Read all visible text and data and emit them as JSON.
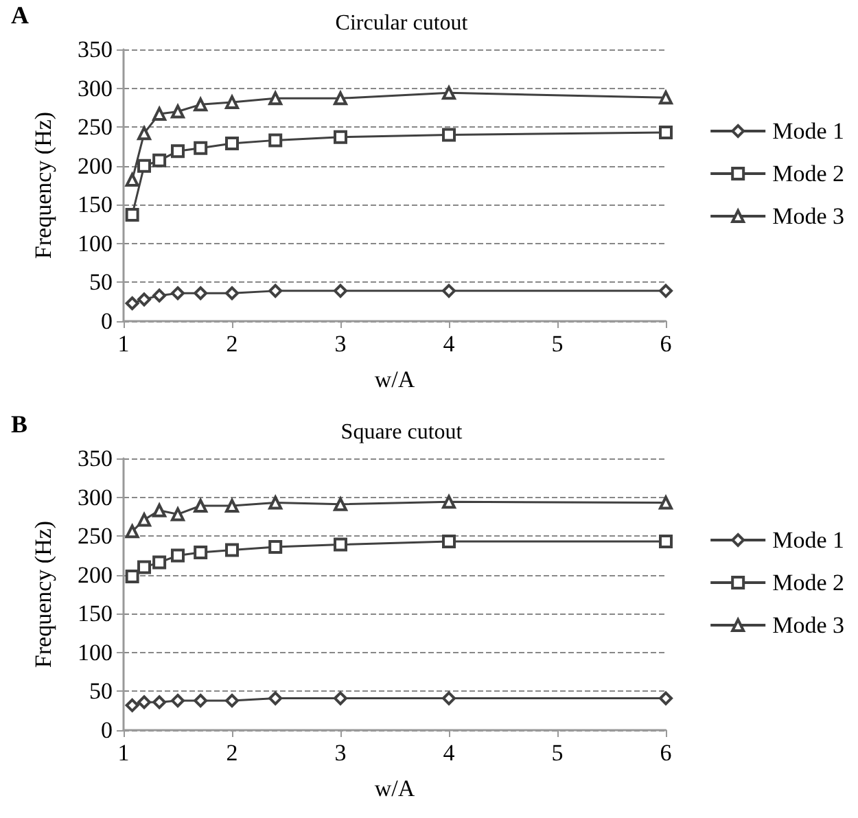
{
  "chart_data": [
    {
      "type": "line",
      "title": "Circular cutout",
      "annotations": [
        "A"
      ],
      "xlabel": "w/A",
      "ylabel": "Frequency (Hz)",
      "x": [
        1.08,
        1.19,
        1.33,
        1.5,
        1.71,
        2,
        2.4,
        3,
        4,
        6
      ],
      "series": [
        {
          "name": "Mode 1",
          "color": "#404040",
          "marker": "diamond",
          "values": [
            23,
            28,
            33,
            36,
            36,
            36,
            39,
            39,
            39,
            39
          ]
        },
        {
          "name": "Mode 2",
          "color": "#404040",
          "marker": "square",
          "values": [
            137,
            200,
            207,
            219,
            223,
            229,
            233,
            237,
            240,
            243
          ]
        },
        {
          "name": "Mode 3",
          "color": "#404040",
          "marker": "triangle",
          "values": [
            182,
            242,
            267,
            270,
            279,
            282,
            287,
            287,
            294,
            288
          ]
        }
      ],
      "xlim": [
        1,
        6
      ],
      "xticks": [
        1,
        2,
        3,
        4,
        5,
        6
      ],
      "ylim": [
        0,
        350
      ],
      "yticks": [
        0,
        50,
        100,
        150,
        200,
        250,
        300,
        350
      ],
      "grid": "y",
      "legend": "right"
    },
    {
      "type": "line",
      "title": "Square cutout",
      "annotations": [
        "B"
      ],
      "xlabel": "w/A",
      "ylabel": "Frequency (Hz)",
      "x": [
        1.08,
        1.19,
        1.33,
        1.5,
        1.71,
        2,
        2.4,
        3,
        4,
        6
      ],
      "series": [
        {
          "name": "Mode 1",
          "color": "#404040",
          "marker": "diamond",
          "values": [
            32,
            36,
            36,
            38,
            38,
            38,
            41,
            41,
            41,
            41
          ]
        },
        {
          "name": "Mode 2",
          "color": "#404040",
          "marker": "square",
          "values": [
            198,
            210,
            216,
            225,
            229,
            232,
            236,
            239,
            243,
            243
          ]
        },
        {
          "name": "Mode 3",
          "color": "#404040",
          "marker": "triangle",
          "values": [
            256,
            271,
            283,
            278,
            289,
            289,
            293,
            291,
            294,
            293
          ]
        }
      ],
      "xlim": [
        1,
        6
      ],
      "xticks": [
        1,
        2,
        3,
        4,
        5,
        6
      ],
      "ylim": [
        0,
        350
      ],
      "yticks": [
        0,
        50,
        100,
        150,
        200,
        250,
        300,
        350
      ],
      "grid": "y",
      "legend": "right"
    }
  ]
}
